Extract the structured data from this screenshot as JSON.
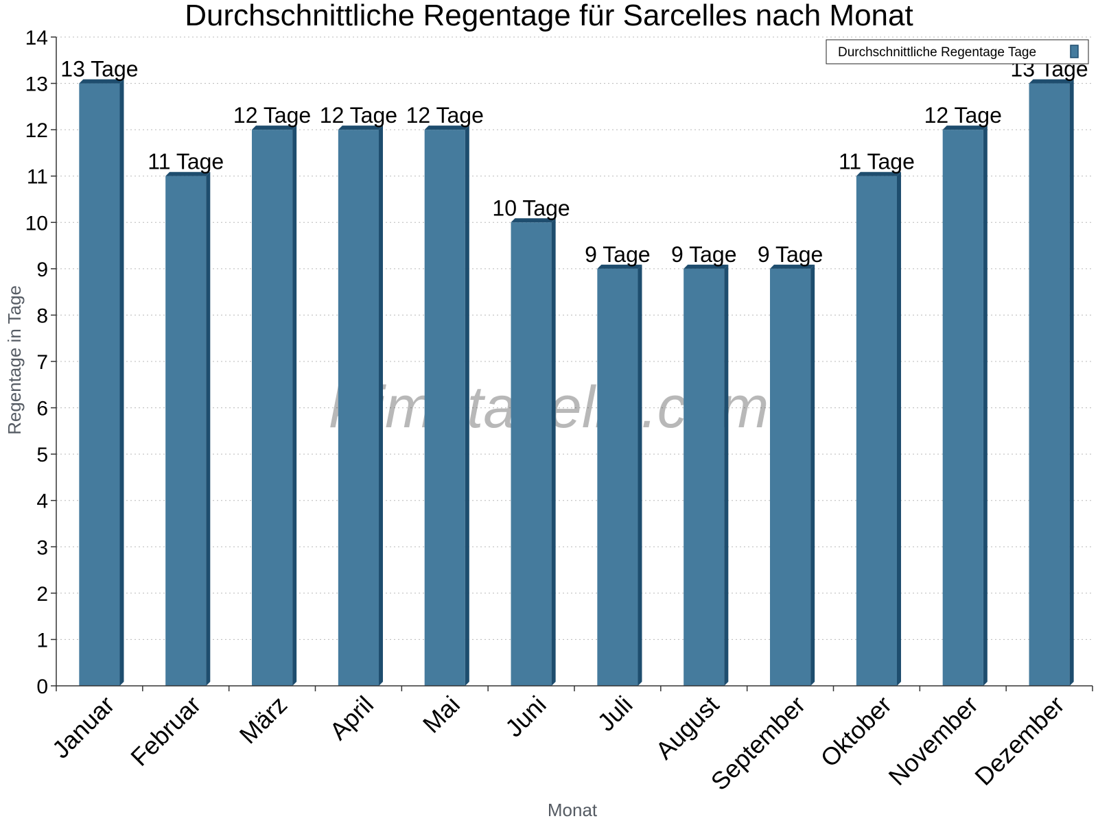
{
  "chart_data": {
    "type": "bar",
    "title": "Durchschnittliche Regentage für Sarcelles nach Monat",
    "xlabel": "Monat",
    "ylabel": "Regentage in Tage",
    "ylim": [
      0,
      14
    ],
    "yticks": [
      0,
      1,
      2,
      3,
      4,
      5,
      6,
      7,
      8,
      9,
      10,
      11,
      12,
      13,
      14
    ],
    "grid": true,
    "legend_position": "top-right",
    "categories": [
      "Januar",
      "Februar",
      "März",
      "April",
      "Mai",
      "Juni",
      "Juli",
      "August",
      "September",
      "Oktober",
      "November",
      "Dezember"
    ],
    "series": [
      {
        "name": "Durchschnittliche Regentage Tage",
        "values": [
          13,
          11,
          12,
          12,
          12,
          10,
          9,
          9,
          9,
          11,
          12,
          13
        ],
        "labels": [
          "13 Tage",
          "11 Tage",
          "12 Tage",
          "12 Tage",
          "12 Tage",
          "10 Tage",
          "9 Tage",
          "9 Tage",
          "9 Tage",
          "11 Tage",
          "12 Tage",
          "13 Tage"
        ],
        "color": "#457b9d",
        "side_color": "#1e4d6e"
      }
    ],
    "watermark": "klimatabelle.com"
  }
}
